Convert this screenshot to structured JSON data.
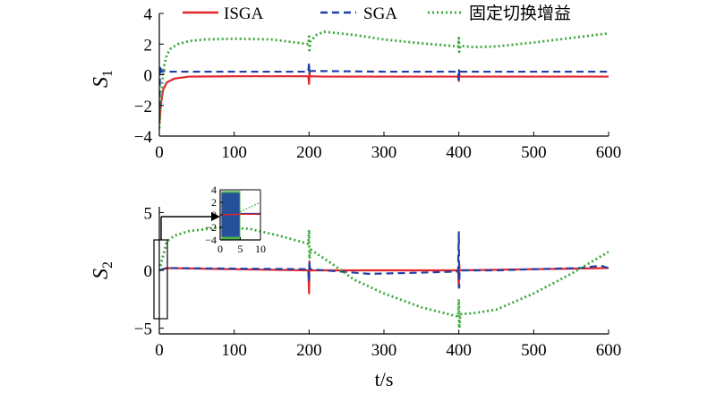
{
  "chart_data": [
    {
      "type": "line",
      "ylabel": "S",
      "ylabel_sub": "1",
      "xlim": [
        0,
        600
      ],
      "ylim": [
        -4,
        4
      ],
      "xticks": [
        0,
        100,
        200,
        300,
        400,
        500,
        600
      ],
      "yticks": [
        -4,
        -2,
        0,
        2,
        4
      ],
      "legend": {
        "placement": "top",
        "entries": [
          "ISGA",
          "SGA",
          "固定切换增益"
        ]
      },
      "series": [
        {
          "name": "ISGA",
          "color": "#e3242b",
          "style": "solid",
          "x": [
            0,
            2,
            5,
            10,
            20,
            40,
            100,
            199,
            200,
            200.5,
            201,
            220,
            300,
            399,
            400,
            400.5,
            401,
            450,
            500,
            600
          ],
          "y": [
            -3.2,
            -2.0,
            -1.0,
            -0.5,
            -0.25,
            -0.12,
            -0.1,
            -0.1,
            -0.6,
            0.2,
            -0.1,
            -0.12,
            -0.12,
            -0.12,
            -0.4,
            0.1,
            -0.12,
            -0.12,
            -0.12,
            -0.12
          ]
        },
        {
          "name": "SGA",
          "color": "#1f3fa8",
          "style": "dashed",
          "x": [
            0,
            1,
            3,
            6,
            10,
            20,
            100,
            199,
            200,
            200.5,
            201,
            300,
            399,
            400,
            400.5,
            401,
            500,
            600
          ],
          "y": [
            -3.0,
            0.6,
            0.2,
            0.25,
            0.2,
            0.2,
            0.2,
            0.2,
            0.8,
            0.0,
            0.25,
            0.2,
            0.2,
            -0.4,
            0.4,
            0.2,
            0.2,
            0.2
          ]
        },
        {
          "name": "固定切换增益",
          "color": "#3aa83a",
          "style": "dotted",
          "x": [
            0,
            3,
            6,
            10,
            15,
            25,
            40,
            60,
            100,
            150,
            199,
            200,
            200.5,
            202,
            210,
            220,
            230,
            260,
            300,
            350,
            399,
            400,
            400.5,
            402,
            410,
            420,
            450,
            500,
            550,
            600
          ],
          "y": [
            -3.5,
            -1.0,
            0.5,
            1.3,
            1.7,
            2.0,
            2.2,
            2.3,
            2.35,
            2.3,
            2.0,
            2.5,
            1.6,
            2.2,
            2.6,
            2.8,
            2.75,
            2.6,
            2.3,
            2.05,
            1.85,
            2.4,
            1.5,
            1.9,
            1.85,
            1.8,
            1.85,
            2.1,
            2.4,
            2.7
          ]
        }
      ]
    },
    {
      "type": "line",
      "ylabel": "S",
      "ylabel_sub": "2",
      "xlabel": "t/s",
      "xlim": [
        0,
        600
      ],
      "ylim": [
        -5.5,
        5.5
      ],
      "xticks": [
        0,
        100,
        200,
        300,
        400,
        500,
        600
      ],
      "yticks": [
        -5,
        0,
        5
      ],
      "series": [
        {
          "name": "ISGA",
          "color": "#e3242b",
          "style": "solid",
          "x": [
            0,
            5,
            10,
            100,
            199,
            200,
            200.5,
            201,
            300,
            399,
            400,
            400.5,
            401,
            500,
            600
          ],
          "y": [
            0,
            0.1,
            0.2,
            0.1,
            0.0,
            -2.0,
            0.8,
            0.0,
            0.0,
            0.0,
            -1.5,
            0.5,
            0.0,
            0.1,
            0.2
          ]
        },
        {
          "name": "SGA",
          "color": "#1f3fa8",
          "style": "dashed",
          "x": [
            0,
            10,
            100,
            199,
            200,
            200.5,
            201,
            280,
            350,
            399,
            400,
            400.5,
            401,
            450,
            500,
            560,
            590,
            600
          ],
          "y": [
            0,
            0.2,
            0.15,
            0.1,
            -1.0,
            0.8,
            0.1,
            -0.3,
            -0.2,
            -0.1,
            3.3,
            -1.5,
            0.0,
            0.0,
            0.1,
            0.2,
            0.4,
            0.2
          ]
        },
        {
          "name": "固定切换增益",
          "color": "#3aa83a",
          "style": "dotted",
          "x": [
            0,
            10,
            20,
            40,
            80,
            120,
            160,
            199,
            200,
            200.5,
            202,
            230,
            260,
            300,
            350,
            399,
            400,
            400.5,
            402,
            420,
            450,
            500,
            550,
            600
          ],
          "y": [
            0,
            2.5,
            3.0,
            3.4,
            3.7,
            3.6,
            3.0,
            2.3,
            3.5,
            1.0,
            1.8,
            0.6,
            -0.8,
            -2.0,
            -3.2,
            -4.0,
            -2.5,
            -5.0,
            -3.8,
            -3.7,
            -3.4,
            -2.0,
            -0.3,
            1.6
          ]
        }
      ]
    },
    {
      "type": "line",
      "note_role": "inset",
      "xlim": [
        0,
        10
      ],
      "ylim": [
        -4,
        4
      ],
      "xticks": [
        0,
        5,
        10
      ],
      "yticks": [
        -4,
        -2,
        0,
        2,
        4
      ],
      "series": [
        {
          "color": "#3aa83a",
          "style": "dotted",
          "band": true,
          "x0": 0.3,
          "x1": 5.0,
          "ymin": -4.0,
          "ymax": 3.8,
          "tail_x": [
            5,
            10
          ],
          "tail_y": [
            0.5,
            2.0
          ]
        },
        {
          "color": "#1f3fa8",
          "style": "solid",
          "band": true,
          "x0": 0.3,
          "x1": 4.8,
          "ymin": -3.5,
          "ymax": 3.5,
          "tail_x": [
            5,
            10
          ],
          "tail_y": [
            0.2,
            0.2
          ]
        },
        {
          "color": "#e3242b",
          "style": "solid",
          "x": [
            0,
            5,
            10
          ],
          "y": [
            0,
            0.1,
            0.1
          ]
        }
      ]
    }
  ]
}
